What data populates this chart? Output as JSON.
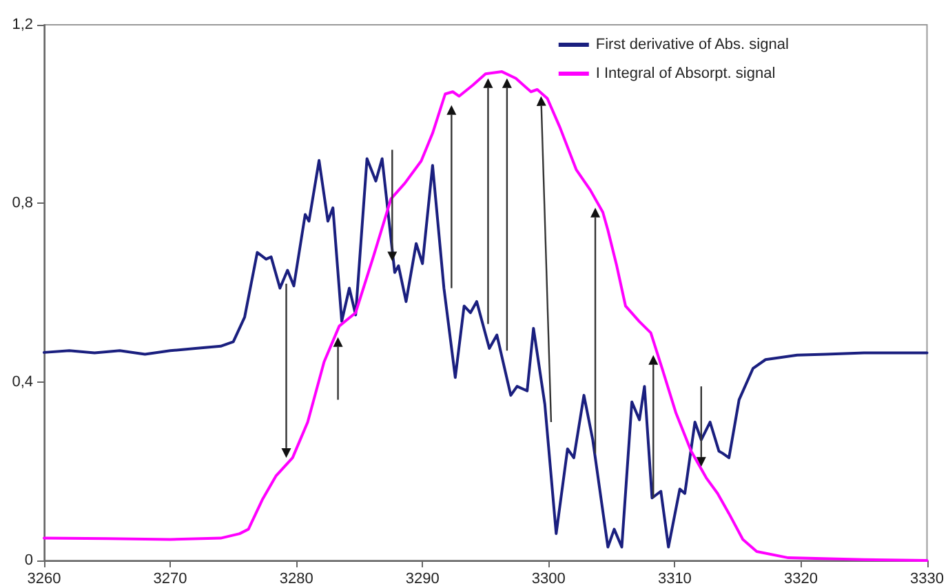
{
  "chart_data": {
    "type": "line",
    "xlim": [
      3260,
      3330
    ],
    "xticks": [
      3260,
      3270,
      3280,
      3290,
      3300,
      3310,
      3320,
      3330
    ],
    "ylim": [
      0,
      1.2
    ],
    "yticks": [
      0,
      {
        "value": 0.4,
        "label": "0,4"
      },
      {
        "value": 0.8,
        "label": "0,8"
      },
      {
        "value": 1.2,
        "label": "1,2"
      }
    ],
    "grid": false,
    "legend": "top right",
    "marker": "none",
    "line_style": "solid",
    "series": [
      {
        "name": "First derivative of Abs. signal",
        "color": "#1a1f7f",
        "x": [
          3260,
          3262,
          3264,
          3266,
          3268,
          3270,
          3272,
          3274,
          3275,
          3275.9,
          3276.9,
          3277.6,
          3278,
          3278.7,
          3279.3,
          3279.8,
          3280.7,
          3281,
          3281.8,
          3282.5,
          3282.9,
          3283.6,
          3284.2,
          3284.7,
          3285.6,
          3286.3,
          3286.8,
          3287.8,
          3288.1,
          3288.7,
          3289.5,
          3290,
          3290.8,
          3291.7,
          3292.6,
          3293.3,
          3293.8,
          3294.3,
          3295.3,
          3295.9,
          3297,
          3297.5,
          3298.3,
          3298.8,
          3299.7,
          3300.6,
          3301.5,
          3302,
          3302.8,
          3303.5,
          3304.7,
          3305.2,
          3305.8,
          3306.6,
          3307.2,
          3307.6,
          3308.2,
          3308.9,
          3309.5,
          3310.4,
          3310.8,
          3311.6,
          3312.1,
          3312.8,
          3313.5,
          3313.8,
          3314.3,
          3315.1,
          3316.2,
          3317.2,
          3319.7,
          3322,
          3325,
          3328,
          3330
        ],
        "values": [
          0.466,
          0.47,
          0.465,
          0.47,
          0.462,
          0.47,
          0.475,
          0.48,
          0.49,
          0.545,
          0.69,
          0.675,
          0.68,
          0.61,
          0.65,
          0.615,
          0.775,
          0.76,
          0.896,
          0.76,
          0.79,
          0.536,
          0.61,
          0.55,
          0.9,
          0.85,
          0.9,
          0.645,
          0.66,
          0.58,
          0.71,
          0.665,
          0.885,
          0.61,
          0.41,
          0.57,
          0.555,
          0.58,
          0.475,
          0.505,
          0.37,
          0.39,
          0.38,
          0.52,
          0.35,
          0.06,
          0.25,
          0.23,
          0.37,
          0.27,
          0.03,
          0.07,
          0.03,
          0.355,
          0.315,
          0.39,
          0.14,
          0.155,
          0.03,
          0.16,
          0.15,
          0.31,
          0.27,
          0.31,
          0.245,
          0.24,
          0.23,
          0.36,
          0.43,
          0.45,
          0.46,
          0.462,
          0.465,
          0.465,
          0.465
        ]
      },
      {
        "name": "I Integral of Absorpt. signal",
        "color": "#ff00ff",
        "x": [
          3260,
          3265,
          3270,
          3274,
          3275.5,
          3276.2,
          3277.3,
          3278.4,
          3279.7,
          3280.9,
          3282.2,
          3283.4,
          3284.7,
          3286.1,
          3287.5,
          3288.6,
          3289.9,
          3290.8,
          3291.8,
          3292.4,
          3292.9,
          3294,
          3295,
          3296.3,
          3297.4,
          3298.6,
          3299.1,
          3299.9,
          3300.9,
          3302.2,
          3303.3,
          3304.3,
          3304.7,
          3305.4,
          3306.1,
          3307.2,
          3308.1,
          3309,
          3310.1,
          3311.3,
          3312.5,
          3313.4,
          3314.3,
          3315.4,
          3316.5,
          3319,
          3325,
          3330
        ],
        "values": [
          0.05,
          0.049,
          0.047,
          0.05,
          0.06,
          0.07,
          0.136,
          0.19,
          0.23,
          0.31,
          0.445,
          0.525,
          0.555,
          0.68,
          0.81,
          0.845,
          0.895,
          0.957,
          1.045,
          1.05,
          1.04,
          1.065,
          1.09,
          1.095,
          1.08,
          1.05,
          1.055,
          1.035,
          0.97,
          0.875,
          0.83,
          0.78,
          0.74,
          0.66,
          0.57,
          0.535,
          0.51,
          0.43,
          0.33,
          0.245,
          0.185,
          0.15,
          0.105,
          0.047,
          0.02,
          0.006,
          0.002,
          0
        ]
      }
    ]
  }
}
